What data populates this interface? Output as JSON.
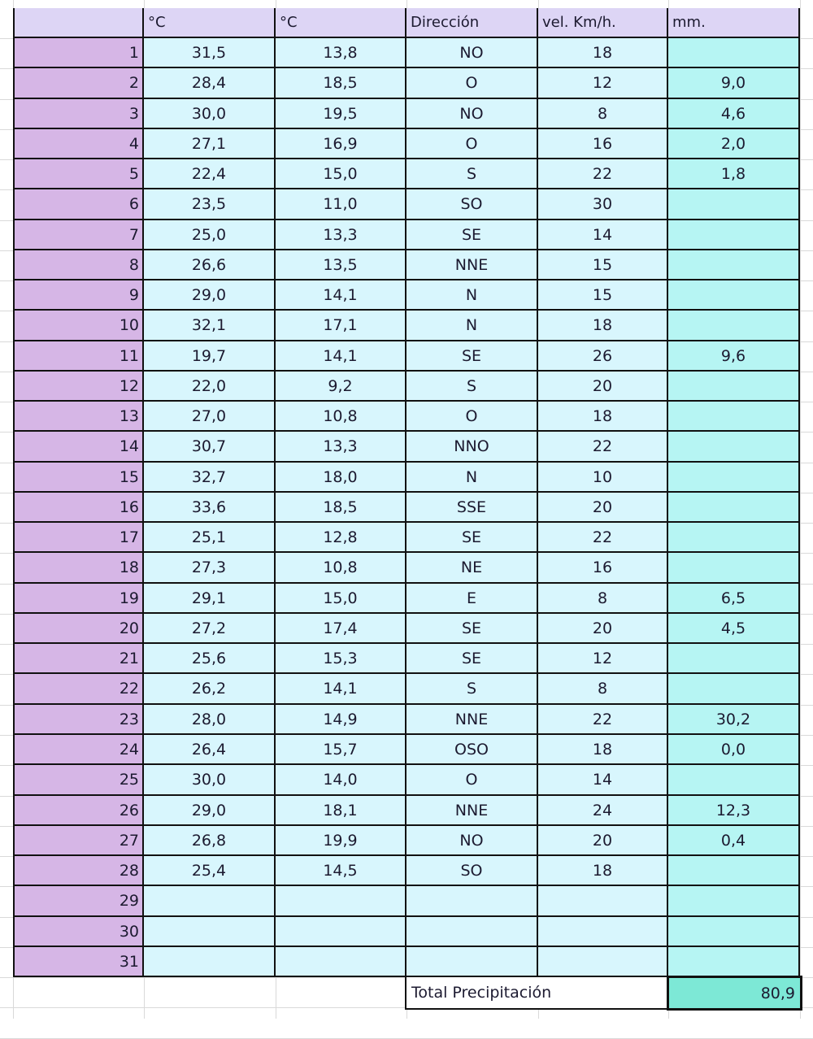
{
  "colors": {
    "header": "#ddd5f5",
    "row_number": "#d6b6e6",
    "data": "#d8f6fd",
    "precipitation": "#b6f5f3",
    "total": "#7de8d6"
  },
  "headers": [
    "",
    "°C",
    "°C",
    "Dirección",
    "vel. Km/h.",
    "mm."
  ],
  "rows": [
    [
      "1",
      "31,5",
      "13,8",
      "NO",
      "18",
      ""
    ],
    [
      "2",
      "28,4",
      "18,5",
      "O",
      "12",
      "9,0"
    ],
    [
      "3",
      "30,0",
      "19,5",
      "NO",
      "8",
      "4,6"
    ],
    [
      "4",
      "27,1",
      "16,9",
      "O",
      "16",
      "2,0"
    ],
    [
      "5",
      "22,4",
      "15,0",
      "S",
      "22",
      "1,8"
    ],
    [
      "6",
      "23,5",
      "11,0",
      "SO",
      "30",
      ""
    ],
    [
      "7",
      "25,0",
      "13,3",
      "SE",
      "14",
      ""
    ],
    [
      "8",
      "26,6",
      "13,5",
      "NNE",
      "15",
      ""
    ],
    [
      "9",
      "29,0",
      "14,1",
      "N",
      "15",
      ""
    ],
    [
      "10",
      "32,1",
      "17,1",
      "N",
      "18",
      ""
    ],
    [
      "11",
      "19,7",
      "14,1",
      "SE",
      "26",
      "9,6"
    ],
    [
      "12",
      "22,0",
      "9,2",
      "S",
      "20",
      ""
    ],
    [
      "13",
      "27,0",
      "10,8",
      "O",
      "18",
      ""
    ],
    [
      "14",
      "30,7",
      "13,3",
      "NNO",
      "22",
      ""
    ],
    [
      "15",
      "32,7",
      "18,0",
      "N",
      "10",
      ""
    ],
    [
      "16",
      "33,6",
      "18,5",
      "SSE",
      "20",
      ""
    ],
    [
      "17",
      "25,1",
      "12,8",
      "SE",
      "22",
      ""
    ],
    [
      "18",
      "27,3",
      "10,8",
      "NE",
      "16",
      ""
    ],
    [
      "19",
      "29,1",
      "15,0",
      "E",
      "8",
      "6,5"
    ],
    [
      "20",
      "27,2",
      "17,4",
      "SE",
      "20",
      "4,5"
    ],
    [
      "21",
      "25,6",
      "15,3",
      "SE",
      "12",
      ""
    ],
    [
      "22",
      "26,2",
      "14,1",
      "S",
      "8",
      ""
    ],
    [
      "23",
      "28,0",
      "14,9",
      "NNE",
      "22",
      "30,2"
    ],
    [
      "24",
      "26,4",
      "15,7",
      "OSO",
      "18",
      "0,0"
    ],
    [
      "25",
      "30,0",
      "14,0",
      "O",
      "14",
      ""
    ],
    [
      "26",
      "29,0",
      "18,1",
      "NNE",
      "24",
      "12,3"
    ],
    [
      "27",
      "26,8",
      "19,9",
      "NO",
      "20",
      "0,4"
    ],
    [
      "28",
      "25,4",
      "14,5",
      "SO",
      "18",
      ""
    ],
    [
      "29",
      "",
      "",
      "",
      "",
      ""
    ],
    [
      "30",
      "",
      "",
      "",
      "",
      ""
    ],
    [
      "31",
      "",
      "",
      "",
      "",
      ""
    ]
  ],
  "total": {
    "label": "Total Precipitación",
    "value": "80,9"
  }
}
